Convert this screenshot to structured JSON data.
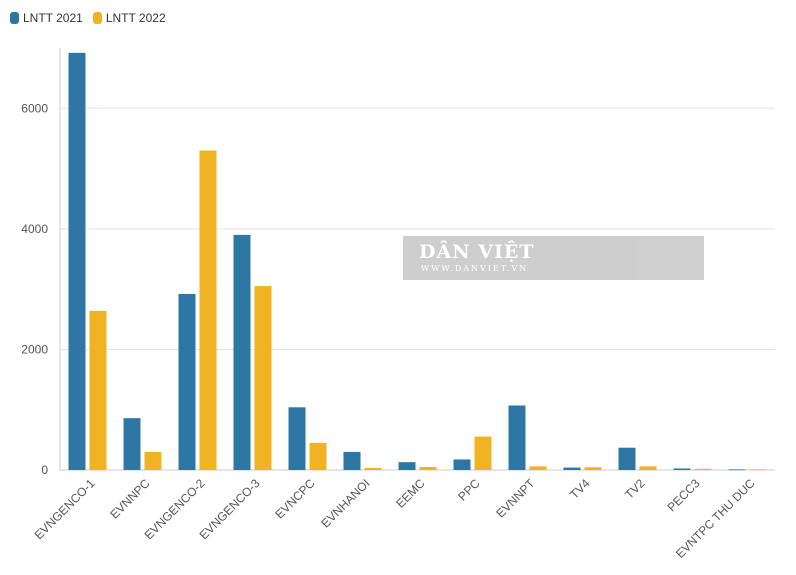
{
  "legend": {
    "series_2021": "LNTT 2021",
    "series_2022": "LNTT 2022"
  },
  "watermark": {
    "title": "DÂN VIỆT",
    "subtitle": "WWW.DANVIET.VN"
  },
  "colors": {
    "series_2021": "#2e77a5",
    "series_2022": "#f0b323",
    "grid": "#e3e3e3",
    "axis": "#cccccc"
  },
  "chart_data": {
    "type": "bar",
    "categories": [
      "EVNGENCO-1",
      "EVNNPC",
      "EVNGENCO-2",
      "EVNGENCO-3",
      "EVNCPC",
      "EVNHANOI",
      "EEMC",
      "PPC",
      "EVNNPT",
      "TV4",
      "TV2",
      "PECC3",
      "EVNTPC THU DUC"
    ],
    "series": [
      {
        "name": "LNTT 2021",
        "values": [
          6920,
          860,
          2920,
          3900,
          1040,
          300,
          130,
          175,
          1070,
          40,
          370,
          25,
          10
        ]
      },
      {
        "name": "LNTT 2022",
        "values": [
          2640,
          300,
          5300,
          3050,
          450,
          35,
          50,
          555,
          60,
          45,
          60,
          20,
          10
        ]
      }
    ],
    "ylim": [
      0,
      7000
    ],
    "yticks": [
      0,
      2000,
      4000,
      6000
    ],
    "grid": true,
    "legend_position": "top-left"
  }
}
